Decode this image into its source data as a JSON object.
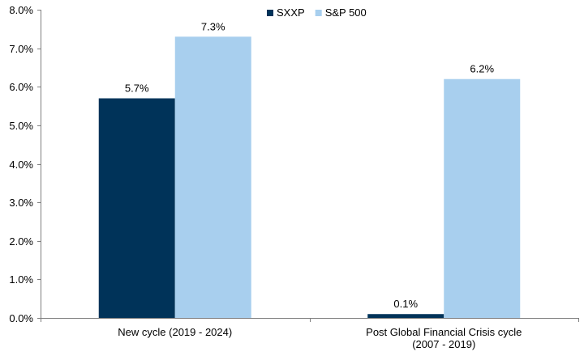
{
  "chart_data": {
    "type": "bar",
    "title": "",
    "xlabel": "",
    "ylabel": "",
    "ylim": [
      0,
      8
    ],
    "y_ticks": [
      {
        "value": 0,
        "label": "0.0%"
      },
      {
        "value": 1,
        "label": "1.0%"
      },
      {
        "value": 2,
        "label": "2.0%"
      },
      {
        "value": 3,
        "label": "3.0%"
      },
      {
        "value": 4,
        "label": "4.0%"
      },
      {
        "value": 5,
        "label": "5.0%"
      },
      {
        "value": 6,
        "label": "6.0%"
      },
      {
        "value": 7,
        "label": "7.0%"
      },
      {
        "value": 8,
        "label": "8.0%"
      }
    ],
    "categories": [
      [
        "New cycle (2019 - 2024)"
      ],
      [
        "Post Global Financial Crisis cycle",
        "(2007 - 2019)"
      ]
    ],
    "series": [
      {
        "name": "SXXP",
        "color": "#003359",
        "values": [
          5.7,
          0.1
        ],
        "labels": [
          "5.7%",
          "0.1%"
        ]
      },
      {
        "name": "S&P 500",
        "color": "#A8CFEE",
        "values": [
          7.3,
          6.2
        ],
        "labels": [
          "7.3%",
          "6.2%"
        ]
      }
    ],
    "legend_position": "top-center",
    "grid": false
  }
}
